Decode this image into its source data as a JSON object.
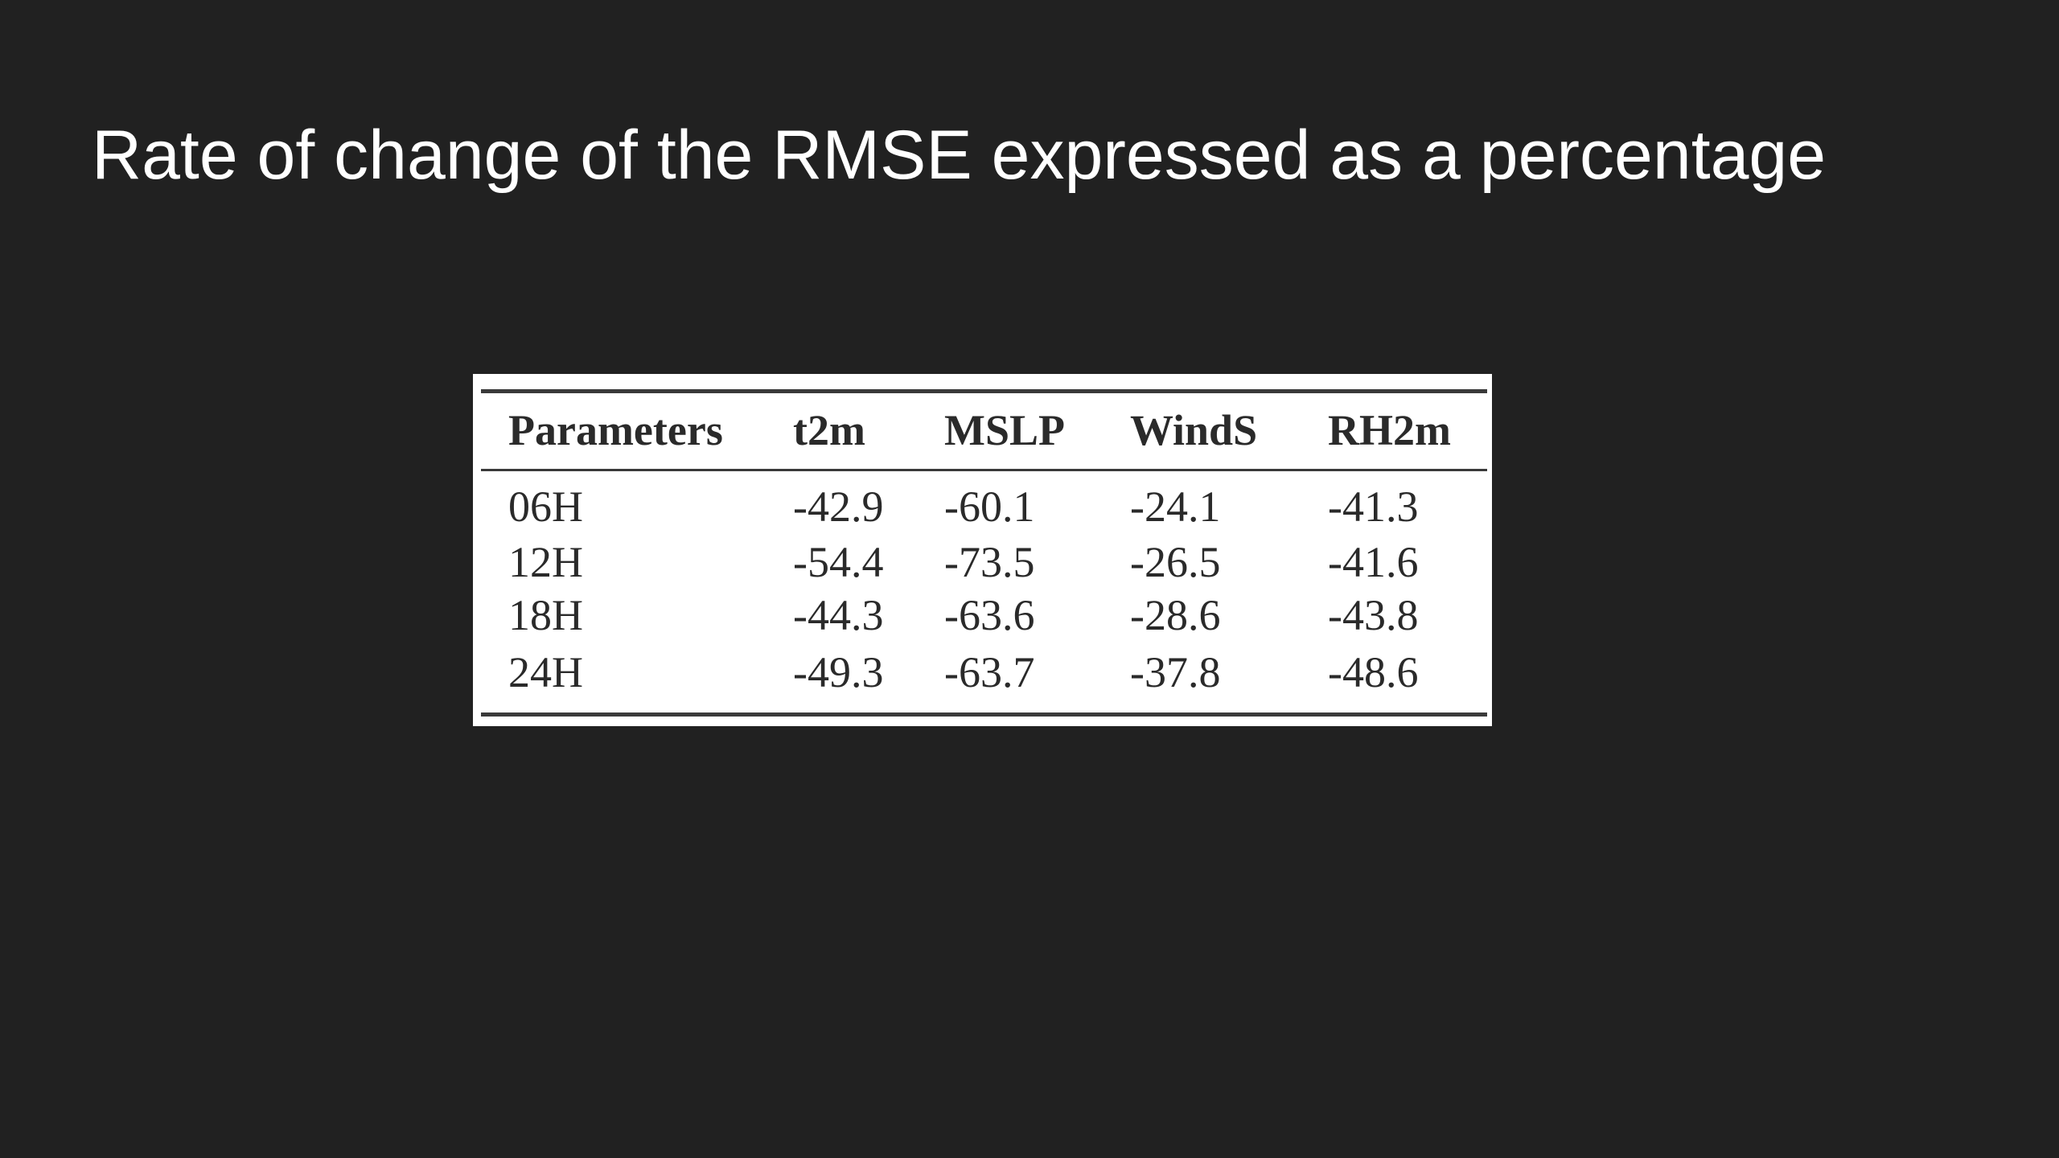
{
  "header": {
    "title": "Rate of change of the RMSE expressed as a percentage"
  },
  "table": {
    "columns": [
      "Parameters",
      "t2m",
      "MSLP",
      "WindS",
      "RH2m"
    ],
    "rows": [
      [
        "06H",
        "-42.9",
        "-60.1",
        "-24.1",
        "-41.3"
      ],
      [
        "12H",
        "-54.4",
        "-73.5",
        "-26.5",
        "-41.6"
      ],
      [
        "18H",
        "-44.3",
        "-63.6",
        "-28.6",
        "-43.8"
      ],
      [
        "24H",
        "-49.3",
        "-63.7",
        "-37.8",
        "-48.6"
      ]
    ]
  }
}
